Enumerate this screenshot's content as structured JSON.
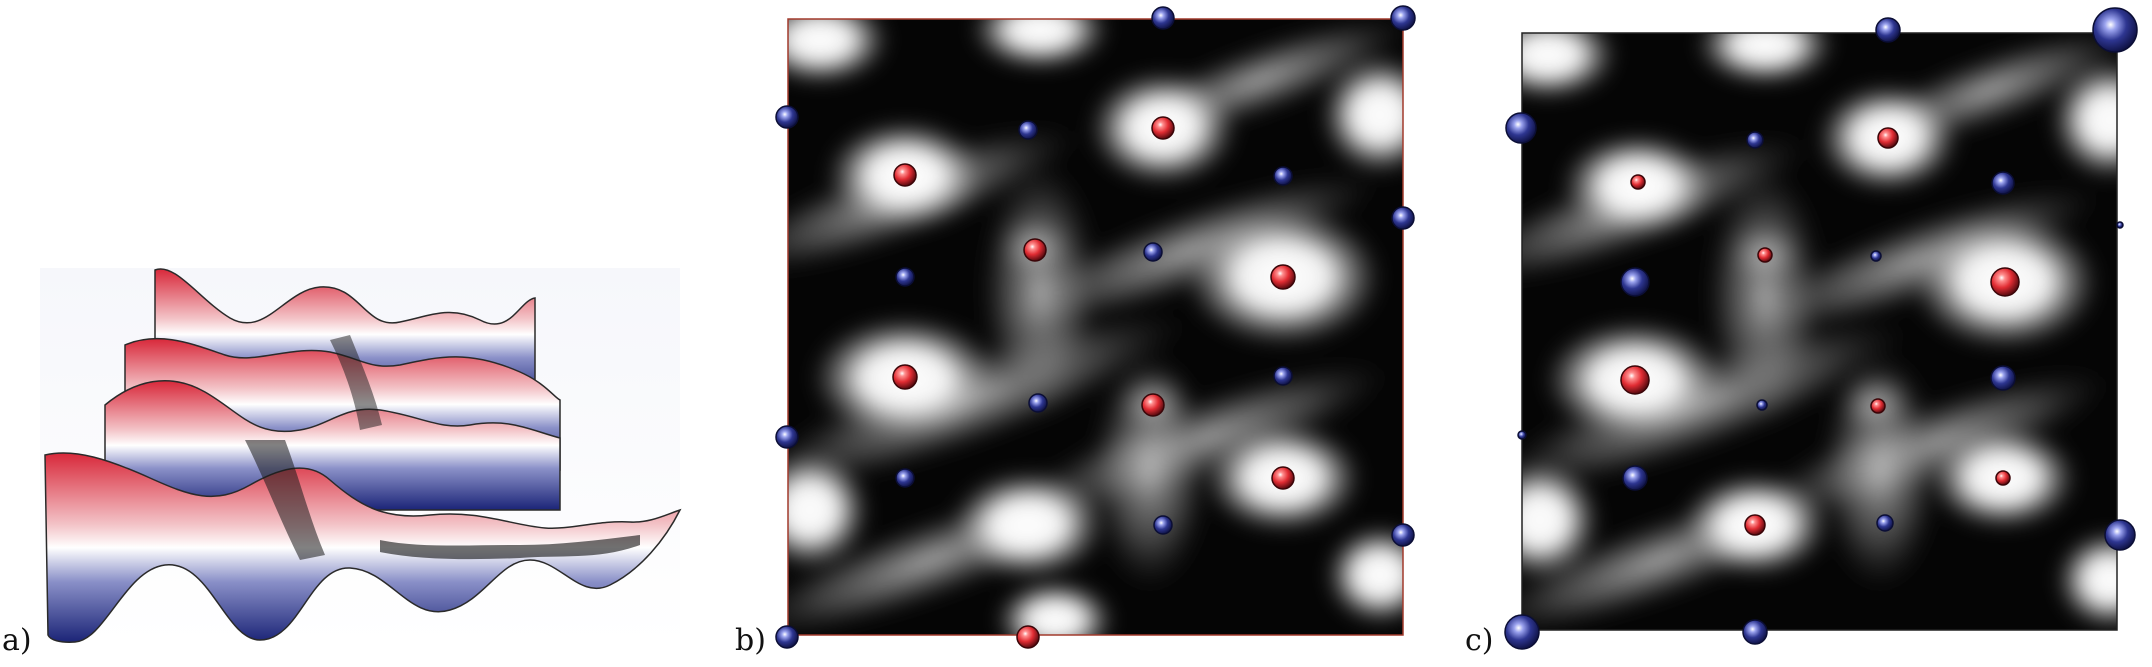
{
  "figure": {
    "panels": [
      {
        "id": "a",
        "label": "a)"
      },
      {
        "id": "b",
        "label": "b)"
      },
      {
        "id": "c",
        "label": "c)"
      }
    ],
    "colors": {
      "positive_red": "#d8283a",
      "negative_blue": "#2a2f8c",
      "field_light": "#ffffff",
      "field_dark": "#000000",
      "anion_sphere": "#e12c33",
      "cation_sphere": "#2e3691",
      "frame": "#a23a2c"
    },
    "atoms_b": [
      {
        "kind": "cation"
      },
      {
        "kind": "cation"
      },
      {
        "kind": "cation"
      },
      {
        "kind": "cation"
      },
      {
        "kind": "cation"
      },
      {
        "kind": "cation"
      },
      {
        "kind": "cation"
      },
      {
        "kind": "cation"
      },
      {
        "kind": "cation"
      },
      {
        "kind": "cation"
      },
      {
        "kind": "cation"
      },
      {
        "kind": "cation"
      },
      {
        "kind": "cation"
      },
      {
        "kind": "cation"
      },
      {
        "kind": "cation"
      },
      {
        "kind": "anion"
      },
      {
        "kind": "anion"
      },
      {
        "kind": "anion"
      },
      {
        "kind": "anion"
      },
      {
        "kind": "anion"
      },
      {
        "kind": "anion"
      },
      {
        "kind": "anion"
      },
      {
        "kind": "anion"
      }
    ],
    "atoms_c": [
      {
        "kind": "cation"
      },
      {
        "kind": "cation"
      },
      {
        "kind": "cation"
      },
      {
        "kind": "cation"
      },
      {
        "kind": "cation"
      },
      {
        "kind": "cation"
      },
      {
        "kind": "cation"
      },
      {
        "kind": "cation"
      },
      {
        "kind": "cation"
      },
      {
        "kind": "cation"
      },
      {
        "kind": "cation"
      },
      {
        "kind": "cation"
      },
      {
        "kind": "cation"
      },
      {
        "kind": "cation"
      },
      {
        "kind": "cation"
      },
      {
        "kind": "cation"
      },
      {
        "kind": "cation"
      },
      {
        "kind": "cation"
      },
      {
        "kind": "anion"
      },
      {
        "kind": "anion"
      },
      {
        "kind": "anion"
      },
      {
        "kind": "anion"
      },
      {
        "kind": "anion"
      },
      {
        "kind": "anion"
      },
      {
        "kind": "anion"
      },
      {
        "kind": "anion"
      }
    ]
  }
}
